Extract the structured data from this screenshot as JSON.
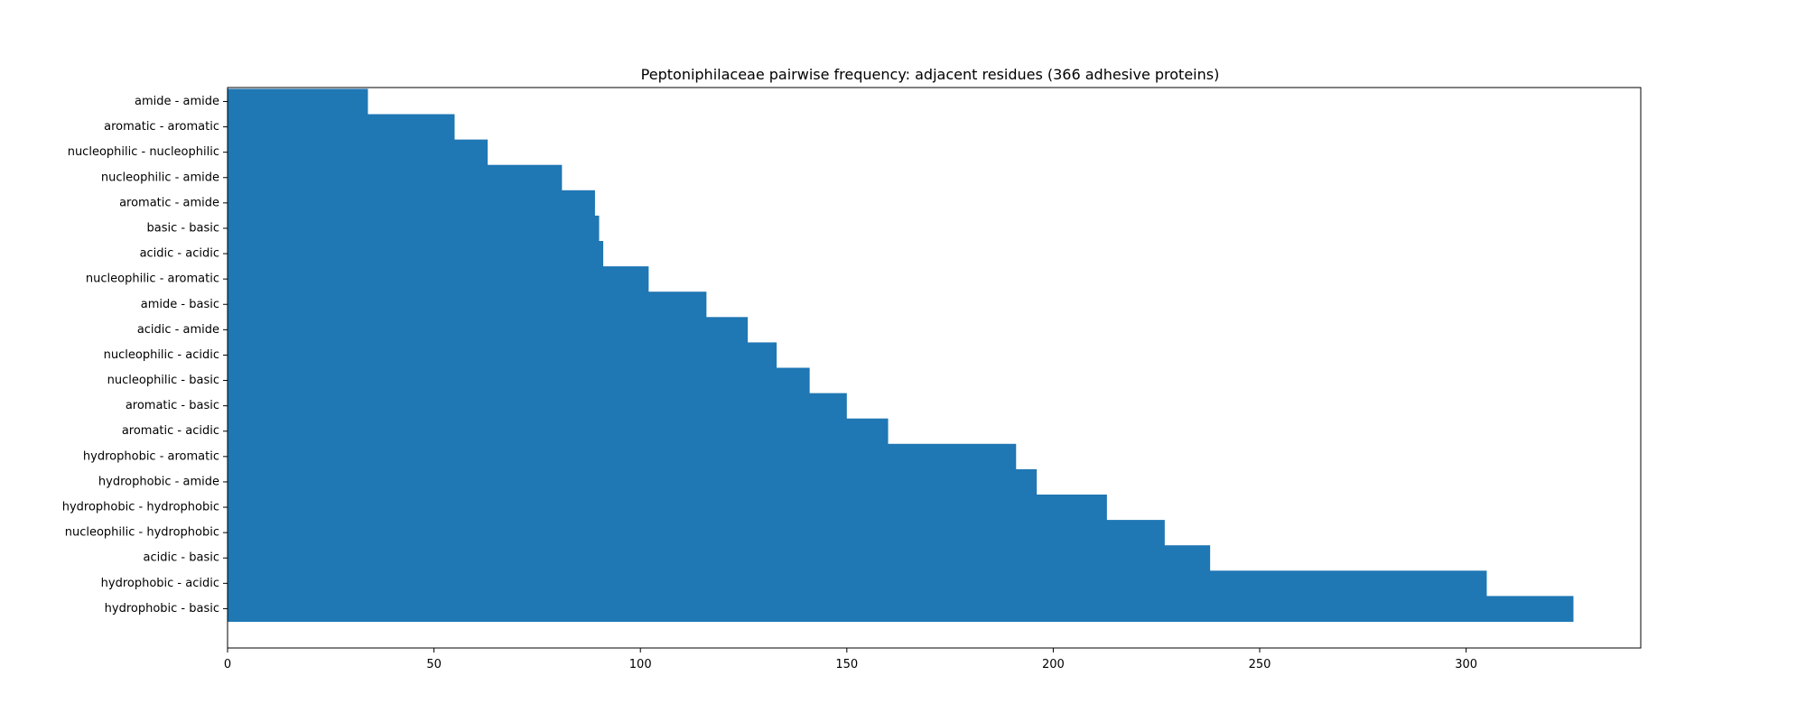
{
  "chart_data": {
    "type": "bar",
    "orientation": "horizontal",
    "title": "Peptoniphilaceae pairwise frequency: adjacent residues (366 adhesive proteins)",
    "xlabel": "",
    "ylabel": "",
    "categories": [
      "amide - amide",
      "aromatic - aromatic",
      "nucleophilic - nucleophilic",
      "nucleophilic - amide",
      "aromatic - amide",
      "basic - basic",
      "acidic - acidic",
      "nucleophilic - aromatic",
      "amide - basic",
      "acidic - amide",
      "nucleophilic - acidic",
      "nucleophilic - basic",
      "aromatic - basic",
      "aromatic - acidic",
      "hydrophobic - aromatic",
      "hydrophobic - amide",
      "hydrophobic - hydrophobic",
      "nucleophilic - hydrophobic",
      "acidic - basic",
      "hydrophobic - acidic",
      "hydrophobic - basic"
    ],
    "values": [
      34,
      55,
      63,
      81,
      89,
      90,
      91,
      102,
      116,
      126,
      133,
      141,
      150,
      160,
      191,
      196,
      213,
      227,
      238,
      305,
      326
    ],
    "xlim": [
      0,
      342.3
    ],
    "xticks": [
      0,
      50,
      100,
      150,
      200,
      250,
      300
    ],
    "bar_color": "#1f77b4",
    "grid": false,
    "legend": "none"
  }
}
